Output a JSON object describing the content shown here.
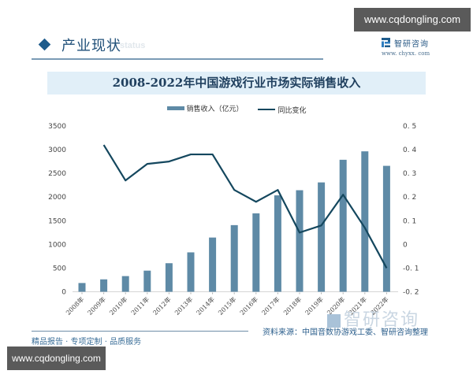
{
  "watermarks": {
    "top": "www.cqdongling.com",
    "bottom": "www.cqdongling.com"
  },
  "section": {
    "title": "产业现状",
    "ghost_text": "status"
  },
  "brand": {
    "name": "智研咨询",
    "url": "www. chyxx. com",
    "watermark_text": "智研咨询"
  },
  "colors": {
    "bar": "#5e8aa6",
    "line": "#14475e",
    "title_bg": "#e1eff8",
    "accent": "#1f5c8c"
  },
  "footer": {
    "source": "资料来源：中国音数协游戏工委、智研咨询整理",
    "tagline": "精品报告 · 专项定制 · 品质服务"
  },
  "chart_data": {
    "type": "bar",
    "title": "2008-2022年中国游戏行业市场实际销售收入",
    "xlabel": "",
    "ylabel": "销售收入（亿元）",
    "y2label": "同比变化",
    "categories": [
      "2008年",
      "2009年",
      "2010年",
      "2011年",
      "2012年",
      "2013年",
      "2014年",
      "2015年",
      "2016年",
      "2017年",
      "2018年",
      "2019年",
      "2020年",
      "2021年",
      "2022年"
    ],
    "series": [
      {
        "name": "销售收入（亿元）",
        "type": "bar",
        "axis": "left",
        "values": [
          185,
          262,
          331,
          446,
          603,
          832,
          1145,
          1407,
          1656,
          2036,
          2144,
          2309,
          2787,
          2965,
          2659
        ]
      },
      {
        "name": "同比变化",
        "type": "line",
        "axis": "right",
        "values": [
          null,
          0.42,
          0.27,
          0.34,
          0.35,
          0.38,
          0.38,
          0.23,
          0.18,
          0.23,
          0.05,
          0.08,
          0.21,
          0.07,
          -0.1
        ]
      }
    ],
    "ylim": [
      0,
      3500
    ],
    "y_ticks": [
      "0",
      "500",
      "1000",
      "1500",
      "2000",
      "2500",
      "3000",
      "3500"
    ],
    "y2lim": [
      -0.2,
      0.5
    ],
    "y2_ticks": [
      "-0.2",
      "-0.1",
      "0",
      "0.1",
      "0.2",
      "0.3",
      "0.4",
      "0.5"
    ],
    "legend_position": "top",
    "grid": false
  }
}
